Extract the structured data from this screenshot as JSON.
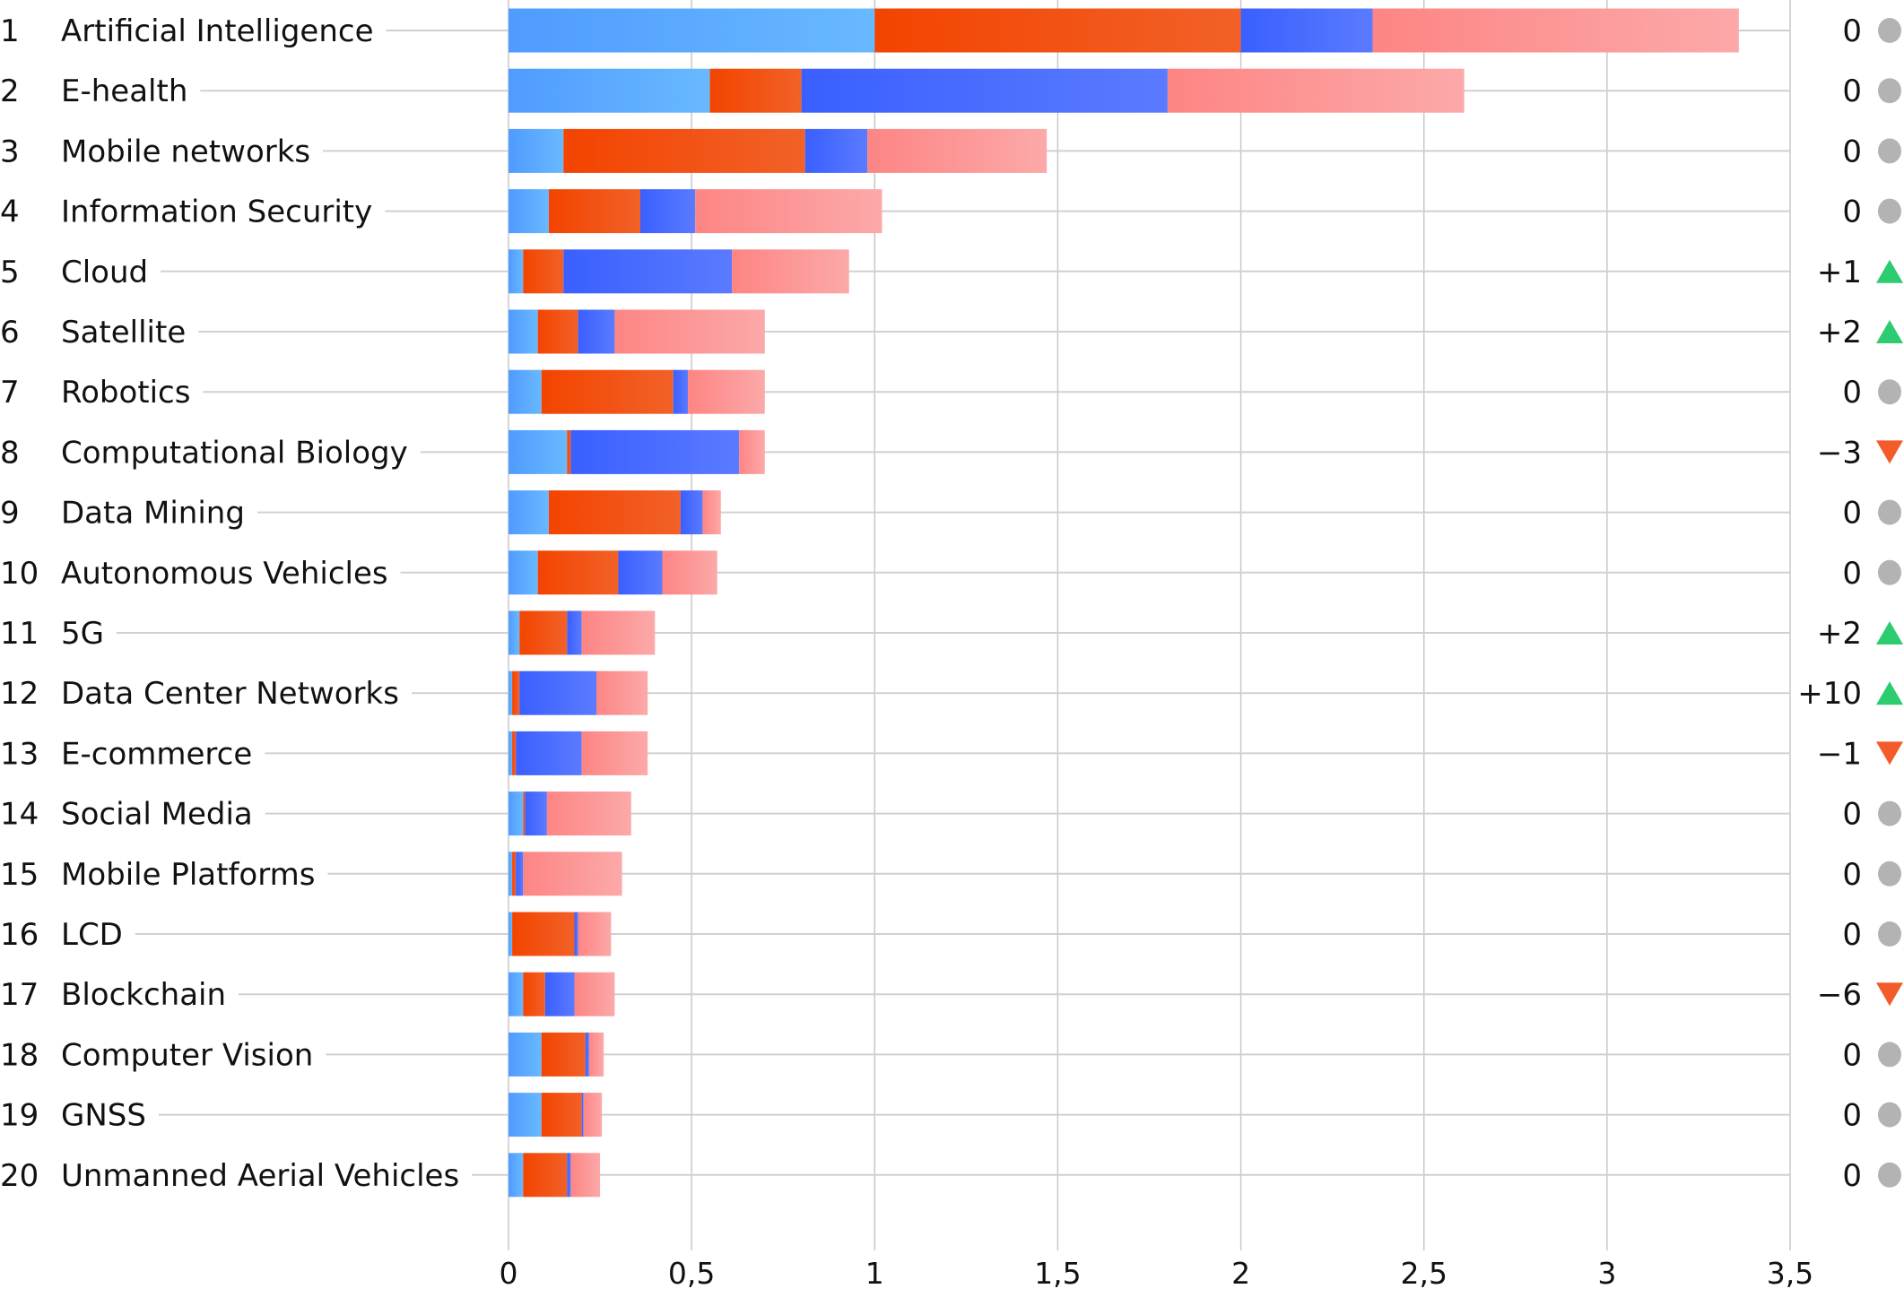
{
  "chart_data": {
    "type": "bar",
    "orientation": "horizontal",
    "stacked": true,
    "xlim": [
      0,
      3.5
    ],
    "x_ticks": [
      "0",
      "0,5",
      "1",
      "1,5",
      "2",
      "2,5",
      "3",
      "3,5"
    ],
    "x_tick_values": [
      0,
      0.5,
      1,
      1.5,
      2,
      2.5,
      3,
      3.5
    ],
    "grid": true,
    "categories": [
      "Artificial Intelligence",
      "E-health",
      "Mobile networks",
      "Information Security",
      "Cloud",
      "Satellite",
      "Robotics",
      "Computational Biology",
      "Data Mining",
      "Autonomous Vehicles",
      "5G",
      "Data Center Networks",
      "E-commerce",
      "Social Media",
      "Mobile Platforms",
      "LCD",
      "Blockchain",
      "Computer Vision",
      "GNSS",
      "Unmanned Aerial Vehicles"
    ],
    "ranks": [
      "1",
      "2",
      "3",
      "4",
      "5",
      "6",
      "7",
      "8",
      "9",
      "10",
      "11",
      "12",
      "13",
      "14",
      "15",
      "16",
      "17",
      "18",
      "19",
      "20"
    ],
    "rank_changes": [
      "0",
      "0",
      "0",
      "0",
      "+1",
      "+2",
      "0",
      "-3",
      "0",
      "0",
      "+2",
      "+10",
      "-1",
      "0",
      "0",
      "0",
      "-6",
      "0",
      "0",
      "0"
    ],
    "rank_change_direction": [
      "same",
      "same",
      "same",
      "same",
      "up",
      "up",
      "same",
      "down",
      "same",
      "same",
      "up",
      "up",
      "down",
      "same",
      "same",
      "same",
      "down",
      "same",
      "same",
      "same"
    ],
    "series": [
      {
        "color": "#4f9bff",
        "values": [
          1.0,
          0.55,
          0.15,
          0.11,
          0.04,
          0.08,
          0.09,
          0.16,
          0.11,
          0.08,
          0.03,
          0.01,
          0.01,
          0.04,
          0.01,
          0.01,
          0.04,
          0.09,
          0.09,
          0.04
        ]
      },
      {
        "color": "#f34400",
        "values": [
          1.0,
          0.25,
          0.66,
          0.25,
          0.11,
          0.11,
          0.36,
          0.01,
          0.36,
          0.22,
          0.13,
          0.02,
          0.01,
          0.005,
          0.01,
          0.17,
          0.06,
          0.12,
          0.11,
          0.12
        ]
      },
      {
        "color": "#3a5fff",
        "values": [
          0.36,
          1.0,
          0.17,
          0.15,
          0.46,
          0.1,
          0.04,
          0.46,
          0.06,
          0.12,
          0.04,
          0.21,
          0.18,
          0.06,
          0.02,
          0.01,
          0.08,
          0.01,
          0.005,
          0.01
        ]
      },
      {
        "color": "#fd8584",
        "values": [
          1.0,
          0.81,
          0.49,
          0.51,
          0.32,
          0.41,
          0.21,
          0.07,
          0.05,
          0.15,
          0.2,
          0.14,
          0.18,
          0.23,
          0.27,
          0.09,
          0.11,
          0.04,
          0.05,
          0.08
        ]
      }
    ],
    "series_gradient_end": [
      "#68b9ff",
      "#f26128",
      "#5a7bff",
      "#fca9a9"
    ],
    "marker_colors": {
      "up": "#2ecc71",
      "down": "#f35c2a",
      "same": "#b3b3b3"
    }
  }
}
